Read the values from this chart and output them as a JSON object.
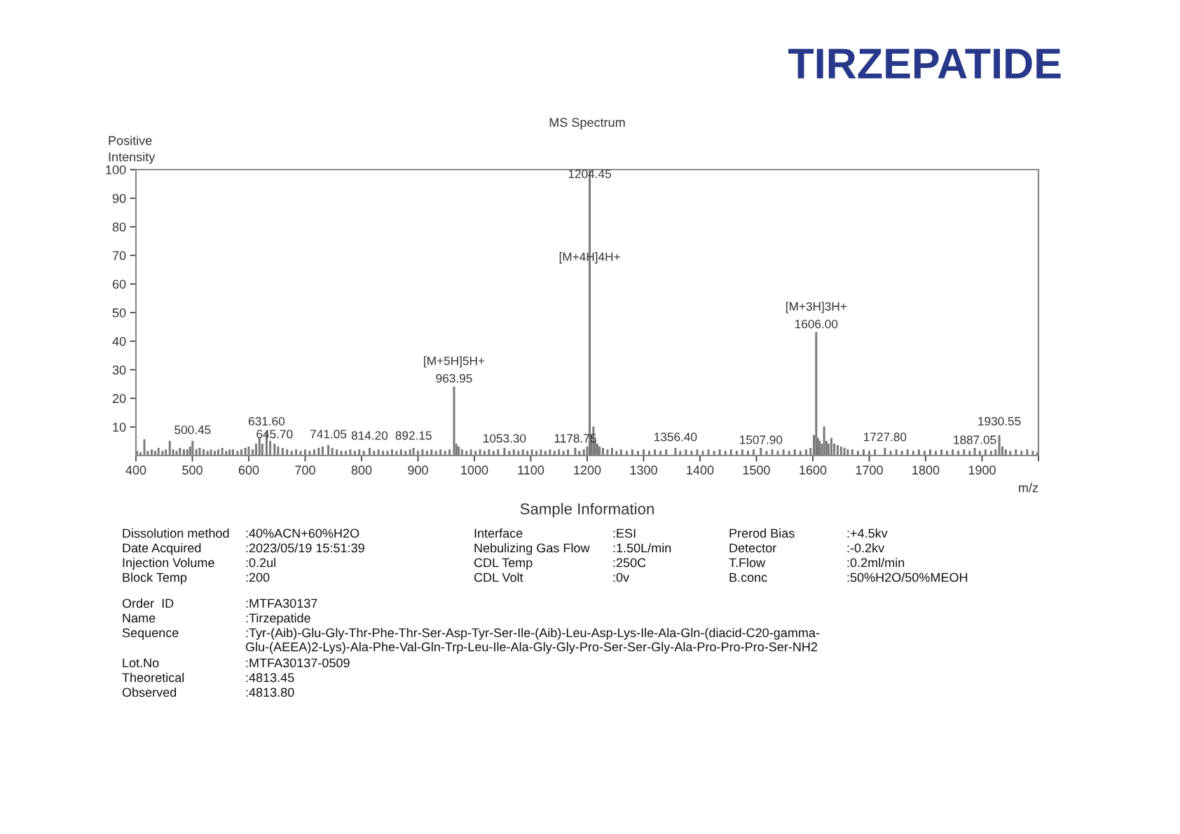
{
  "chart_data": {
    "type": "bar",
    "title": "TIRZEPATIDE",
    "subtitle": "MS Spectrum",
    "xlabel": "m/z",
    "ylabel": "Positive\nIntensity",
    "color": "#7a7a7a",
    "x": [
      402,
      408,
      415,
      421,
      428,
      434,
      440,
      447,
      453,
      460,
      466,
      472,
      478,
      485,
      491,
      496,
      500.45,
      507,
      513,
      520,
      527,
      533,
      540,
      546,
      553,
      560,
      566,
      572,
      580,
      587,
      594,
      600,
      607,
      613,
      619,
      624,
      631.6,
      638,
      645.7,
      652,
      660,
      668,
      676,
      684,
      692,
      700,
      708,
      716,
      724,
      731,
      741.05,
      748,
      756,
      764,
      772,
      780,
      788,
      796,
      804,
      814.2,
      822,
      830,
      838,
      846,
      854,
      862,
      870,
      878,
      886,
      892.15,
      900,
      908,
      916,
      924,
      932,
      940,
      948,
      956,
      963.95,
      968,
      972,
      978,
      986,
      994,
      1002,
      1010,
      1018,
      1026,
      1034,
      1042,
      1053.3,
      1062,
      1070,
      1078,
      1086,
      1094,
      1102,
      1110,
      1118,
      1126,
      1134,
      1142,
      1150,
      1158,
      1166,
      1178.75,
      1186,
      1194,
      1200,
      1204.45,
      1207,
      1211,
      1214,
      1218,
      1222,
      1228,
      1236,
      1244,
      1252,
      1260,
      1270,
      1280,
      1290,
      1300,
      1310,
      1320,
      1330,
      1340,
      1356.4,
      1365,
      1375,
      1385,
      1395,
      1405,
      1415,
      1425,
      1435,
      1445,
      1455,
      1465,
      1475,
      1485,
      1495,
      1507.9,
      1518,
      1528,
      1538,
      1548,
      1558,
      1568,
      1578,
      1588,
      1596,
      1602,
      1606,
      1609,
      1612,
      1616,
      1620,
      1624,
      1628,
      1633,
      1638,
      1644,
      1650,
      1656,
      1662,
      1670,
      1680,
      1690,
      1700,
      1710,
      1727.8,
      1738,
      1748,
      1758,
      1768,
      1778,
      1788,
      1798,
      1808,
      1818,
      1828,
      1838,
      1848,
      1858,
      1868,
      1878,
      1887.05,
      1896,
      1906,
      1916,
      1924,
      1930.55,
      1936,
      1942,
      1950,
      1960,
      1970,
      1980,
      1990,
      1998
    ],
    "values": [
      1.5,
      1,
      5.5,
      1.5,
      2,
      1.5,
      2.5,
      1.5,
      2,
      5,
      2,
      1.5,
      2.5,
      2,
      2,
      3,
      5,
      2,
      2.5,
      2,
      1.5,
      2,
      1.5,
      2,
      2.5,
      1.5,
      2,
      2,
      1.5,
      2,
      2.5,
      3,
      2,
      4,
      6,
      4,
      8,
      5,
      4,
      3,
      2.5,
      2,
      1.5,
      2,
      1.5,
      2,
      1.5,
      2,
      2.5,
      3,
      3.5,
      2.5,
      2,
      1.5,
      1.5,
      2,
      1.5,
      2,
      1.5,
      2.5,
      1.5,
      2,
      1.5,
      1.5,
      2,
      1.5,
      2,
      1.5,
      2,
      2.5,
      1.5,
      2,
      1.5,
      2,
      1.5,
      2,
      1.5,
      2,
      24,
      4,
      3,
      2,
      1.5,
      2,
      1.5,
      2,
      1.5,
      2,
      1.5,
      2,
      2.5,
      1.5,
      2,
      1.5,
      2,
      1.5,
      2,
      1.5,
      2,
      1.5,
      2,
      1.5,
      2,
      1.5,
      2,
      2.5,
      1.5,
      2,
      3,
      100,
      7,
      10,
      5,
      4,
      3,
      2.5,
      2,
      2.5,
      1.5,
      2,
      1.5,
      2,
      1.5,
      2,
      1.5,
      2,
      1.5,
      2,
      2.5,
      1.5,
      2,
      1.5,
      2,
      1.5,
      2,
      1.5,
      2,
      1.5,
      2,
      1.5,
      2,
      1.5,
      2,
      2.5,
      1.5,
      2,
      1.5,
      2,
      1.5,
      2,
      1.5,
      2,
      2.5,
      7,
      43,
      6,
      5,
      4,
      10,
      5,
      4,
      6,
      4,
      3.5,
      3,
      2.5,
      2,
      2,
      1.5,
      2,
      1.5,
      2,
      2.5,
      1.5,
      2,
      1.5,
      2,
      1.5,
      2,
      1.5,
      2,
      1.5,
      2,
      1.5,
      2,
      1.5,
      2,
      1.5,
      2.5,
      1.5,
      2,
      1.5,
      2,
      7,
      3,
      2,
      1.5,
      2,
      1.5,
      2,
      1.5,
      1
    ],
    "xlim": [
      400,
      2000
    ],
    "xticks": [
      400,
      500,
      600,
      700,
      800,
      900,
      1000,
      1100,
      1200,
      1300,
      1400,
      1500,
      1600,
      1700,
      1800,
      1900,
      {
        "value": 2000,
        "label": null
      }
    ],
    "ylim": [
      0,
      100
    ],
    "yticks": [
      10,
      20,
      30,
      40,
      50,
      60,
      70,
      80,
      90,
      100
    ],
    "annotations": [
      {
        "text": "500.45",
        "x": 500.45,
        "y": 6
      },
      {
        "text": "631.60",
        "x": 631.6,
        "y": 9
      },
      {
        "text": "645.70",
        "x": 645.7,
        "y": 4.5
      },
      {
        "text": "741.05",
        "x": 741.05,
        "y": 4.5
      },
      {
        "text": "814.20",
        "x": 814.2,
        "y": 4
      },
      {
        "text": "892.15",
        "x": 892.15,
        "y": 4
      },
      {
        "text": "963.95",
        "x": 963.95,
        "y": 24
      },
      {
        "text": "[M+5H]5H+",
        "x": 963.95,
        "y": 24
      },
      {
        "text": "1053.30",
        "x": 1053.3,
        "y": 3
      },
      {
        "text": "1178.75",
        "x": 1178.75,
        "y": 3
      },
      {
        "text": "1204.45",
        "x": 1204.45,
        "y": 95.5
      },
      {
        "text": "[M+4H]4H+",
        "x": 1204.45,
        "y": 66.5
      },
      {
        "text": "1356.40",
        "x": 1356.4,
        "y": 3.5
      },
      {
        "text": "1507.90",
        "x": 1507.9,
        "y": 2.5
      },
      {
        "text": "1606.00",
        "x": 1606,
        "y": 43
      },
      {
        "text": "[M+3H]3H+",
        "x": 1606,
        "y": 43
      },
      {
        "text": "1727.80",
        "x": 1727.8,
        "y": 3.5
      },
      {
        "text": "1887.05",
        "x": 1887.05,
        "y": 2.5
      },
      {
        "text": "1930.55",
        "x": 1930.55,
        "y": 9
      },
      "Sample Information",
      "Dissolution method\t:40%ACN+60%H2O",
      "Date Acquired\t:2023/05/19 15:51:39",
      "Injection Volume\t:0.2ul",
      "Block Temp\t:200",
      "Interface\t:ESI",
      "Nebulizing Gas Flow\t:1.50L/min",
      "CDL Temp\t:250C",
      "CDL Volt\t:0v",
      "Prerod Bias\t:+4.5kv",
      "Detector\t:-0.2kv",
      "T.Flow\t:0.2ml/min",
      "B.conc\t:50%H2O/50%MEOH",
      "Order  ID\t:MTFA30137",
      "Name\t:Tirzepatide",
      "Sequence\t:Tyr-(Aib)-Glu-Gly-Thr-Phe-Thr-Ser-Asp-Tyr-Ser-Ile-(Aib)-Leu-Asp-Lys-Ile-Ala-Gln-(diacid-C20-gamma-\nGlu-(AEEA)2-Lys)-Ala-Phe-Val-Gln-Trp-Leu-Ile-Ala-Gly-Gly-Pro-Ser-Ser-Gly-Ala-Pro-Pro-Pro-Ser-NH2",
      "Lot.No\t:MTFA30137-0509",
      "Theoretical\t:4813.45",
      "Observed\t:4813.80"
    ]
  }
}
